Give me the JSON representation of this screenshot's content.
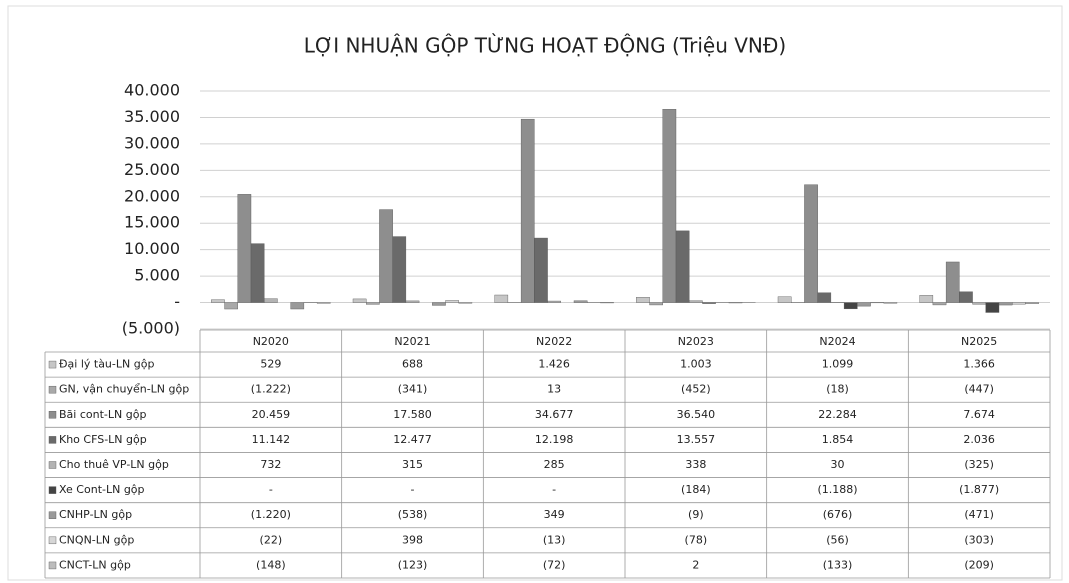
{
  "chart_data": {
    "type": "bar",
    "title": "LỢI NHUẬN GỘP TỪNG HOẠT ĐỘNG (Triệu VNĐ)",
    "categories": [
      "N2020",
      "N2021",
      "N2022",
      "N2023",
      "N2024",
      "N2025"
    ],
    "ylim": [
      -5000,
      40000
    ],
    "yticks": [
      {
        "value": -5000,
        "label": "(5.000)"
      },
      {
        "value": 0,
        "label": "-"
      },
      {
        "value": 5000,
        "label": "5.000"
      },
      {
        "value": 10000,
        "label": "10.000"
      },
      {
        "value": 15000,
        "label": "15.000"
      },
      {
        "value": 20000,
        "label": "20.000"
      },
      {
        "value": 25000,
        "label": "25.000"
      },
      {
        "value": 30000,
        "label": "30.000"
      },
      {
        "value": 35000,
        "label": "35.000"
      },
      {
        "value": 40000,
        "label": "40.000"
      }
    ],
    "grid": true,
    "series": [
      {
        "name": "Đại lý tàu-LN gộp",
        "color": "#c6c6c6",
        "values": [
          529,
          688,
          1426,
          1003,
          1099,
          1366
        ],
        "value_labels": [
          "529",
          "688",
          "1.426",
          "1.003",
          "1.099",
          "1.366"
        ]
      },
      {
        "name": "GN, vận chuyển-LN gộp",
        "color": "#a9a9a9",
        "values": [
          -1222,
          -341,
          13,
          -452,
          -18,
          -447
        ],
        "value_labels": [
          "(1.222)",
          "(341)",
          "13",
          "(452)",
          "(18)",
          "(447)"
        ]
      },
      {
        "name": "Bãi cont-LN gộp",
        "color": "#8e8e8e",
        "values": [
          20459,
          17580,
          34677,
          36540,
          22284,
          7674
        ],
        "value_labels": [
          "20.459",
          "17.580",
          "34.677",
          "36.540",
          "22.284",
          "7.674"
        ]
      },
      {
        "name": "Kho CFS-LN gộp",
        "color": "#6a6a6a",
        "values": [
          11142,
          12477,
          12198,
          13557,
          1854,
          2036
        ],
        "value_labels": [
          "11.142",
          "12.477",
          "12.198",
          "13.557",
          "1.854",
          "2.036"
        ]
      },
      {
        "name": "Cho thuê VP-LN gộp",
        "color": "#b3b3b3",
        "values": [
          732,
          315,
          285,
          338,
          30,
          -325
        ],
        "value_labels": [
          "732",
          "315",
          "285",
          "338",
          "30",
          "(325)"
        ]
      },
      {
        "name": "Xe Cont-LN gộp",
        "color": "#444444",
        "values": [
          0,
          0,
          0,
          -184,
          -1188,
          -1877
        ],
        "value_labels": [
          "-",
          "-",
          "-",
          "(184)",
          "(1.188)",
          "(1.877)"
        ]
      },
      {
        "name": "CNHP-LN gộp",
        "color": "#9a9a9a",
        "values": [
          -1220,
          -538,
          349,
          -9,
          -676,
          -471
        ],
        "value_labels": [
          "(1.220)",
          "(538)",
          "349",
          "(9)",
          "(676)",
          "(471)"
        ]
      },
      {
        "name": "CNQN-LN gộp",
        "color": "#d6d6d6",
        "values": [
          -22,
          398,
          -13,
          -78,
          -56,
          -303
        ],
        "value_labels": [
          "(22)",
          "398",
          "(13)",
          "(78)",
          "(56)",
          "(303)"
        ]
      },
      {
        "name": "CNCT-LN gộp",
        "color": "#bcbcbc",
        "values": [
          -148,
          -123,
          -72,
          2,
          -133,
          -209
        ],
        "value_labels": [
          "(148)",
          "(123)",
          "(72)",
          "2",
          "(133)",
          "(209)"
        ]
      }
    ]
  }
}
